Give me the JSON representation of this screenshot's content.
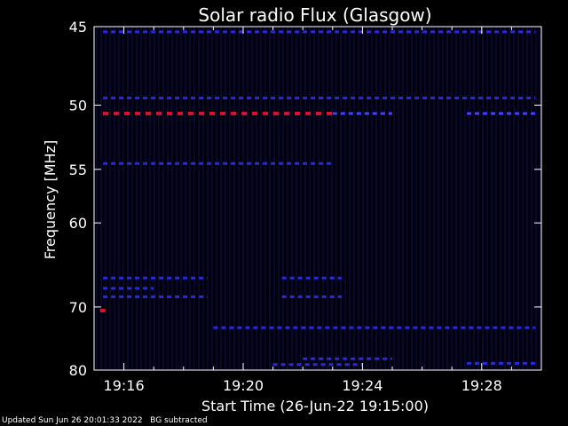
{
  "chart_data": {
    "type": "heatmap",
    "title": "Solar radio Flux (Glasgow)",
    "xlabel": "Start Time (26-Jun-22 19:15:00)",
    "ylabel": "Frequency [MHz]",
    "x_tick_labels": [
      "19:16",
      "19:20",
      "19:24",
      "19:28"
    ],
    "x_ticks_minutes_after_start": [
      1,
      5,
      9,
      13
    ],
    "x_range_minutes_after_start": [
      0,
      15
    ],
    "y_ticks": [
      45,
      50,
      55,
      60,
      70,
      80
    ],
    "y_range": [
      45,
      80
    ],
    "y_scale": "reciprocal",
    "colors": {
      "background": "#000010",
      "weak": "#101038",
      "moderate": "#2a2ad8",
      "strong": "#4040ff",
      "intense": "#e0102a",
      "axes": "#ffffff"
    },
    "emission_bands": [
      {
        "freq": 45.3,
        "t_start": 0.3,
        "t_end": 14.8,
        "level": "moderate"
      },
      {
        "freq": 49.5,
        "t_start": 0.3,
        "t_end": 14.8,
        "level": "moderate"
      },
      {
        "freq": 50.6,
        "t_start": 0.3,
        "t_end": 8.0,
        "level": "intense"
      },
      {
        "freq": 50.6,
        "t_start": 8.0,
        "t_end": 10.0,
        "level": "strong"
      },
      {
        "freq": 50.6,
        "t_start": 12.5,
        "t_end": 14.8,
        "level": "strong"
      },
      {
        "freq": 54.5,
        "t_start": 0.3,
        "t_end": 8.0,
        "level": "moderate"
      },
      {
        "freq": 66.2,
        "t_start": 0.3,
        "t_end": 3.8,
        "level": "moderate"
      },
      {
        "freq": 66.2,
        "t_start": 6.3,
        "t_end": 8.3,
        "level": "moderate"
      },
      {
        "freq": 67.5,
        "t_start": 0.3,
        "t_end": 2.0,
        "level": "moderate"
      },
      {
        "freq": 68.6,
        "t_start": 0.3,
        "t_end": 3.8,
        "level": "moderate"
      },
      {
        "freq": 68.6,
        "t_start": 6.3,
        "t_end": 8.3,
        "level": "moderate"
      },
      {
        "freq": 70.5,
        "t_start": 0.2,
        "t_end": 0.4,
        "level": "intense"
      },
      {
        "freq": 73.0,
        "t_start": 4.0,
        "t_end": 14.8,
        "level": "moderate"
      },
      {
        "freq": 78.0,
        "t_start": 7.0,
        "t_end": 10.0,
        "level": "moderate"
      },
      {
        "freq": 79.0,
        "t_start": 6.0,
        "t_end": 9.0,
        "level": "moderate"
      },
      {
        "freq": 78.8,
        "t_start": 12.5,
        "t_end": 14.8,
        "level": "moderate"
      }
    ]
  },
  "footer": {
    "updated": "Updated Sun Jun 26 20:01:33 2022",
    "note": "BG subtracted"
  }
}
